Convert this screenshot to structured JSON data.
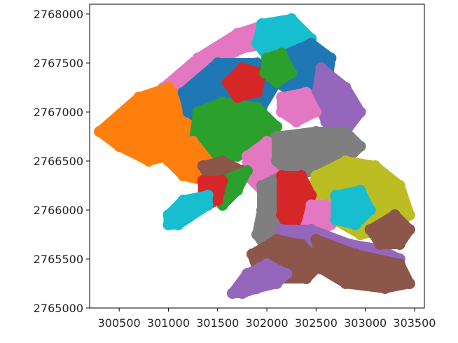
{
  "chart_data": {
    "type": "scatter",
    "title": "",
    "xlabel": "",
    "ylabel": "",
    "xlim": [
      300200,
      303600
    ],
    "ylim": [
      2765000,
      2768100
    ],
    "x_ticks": [
      300500,
      301000,
      301500,
      302000,
      302500,
      303000,
      303500
    ],
    "x_tick_labels": [
      "300500",
      "301000",
      "301500",
      "302000",
      "302500",
      "303000",
      "303500"
    ],
    "y_ticks": [
      2765000,
      2765500,
      2766000,
      2766500,
      2767000,
      2767500,
      2768000
    ],
    "y_tick_labels": [
      "2765000",
      "2765500",
      "2766000",
      "2766500",
      "2767000",
      "2767500",
      "2768000"
    ],
    "grid": false,
    "palette": [
      "#1f77b4",
      "#ff7f0e",
      "#2ca02c",
      "#d62728",
      "#9467bd",
      "#8c564b",
      "#e377c2",
      "#7f7f7f",
      "#bcbd22",
      "#17becf"
    ],
    "regions": [
      {
        "color_index": 6,
        "points": [
          [
            300950,
            2767250
          ],
          [
            301300,
            2767550
          ],
          [
            301700,
            2767800
          ],
          [
            302000,
            2767900
          ],
          [
            302300,
            2767800
          ],
          [
            302050,
            2767700
          ],
          [
            301750,
            2767650
          ],
          [
            301400,
            2767450
          ],
          [
            301100,
            2767200
          ]
        ]
      },
      {
        "color_index": 1,
        "points": [
          [
            300300,
            2766800
          ],
          [
            300700,
            2767150
          ],
          [
            301000,
            2767250
          ],
          [
            301250,
            2767000
          ],
          [
            301150,
            2766700
          ],
          [
            301000,
            2766550
          ],
          [
            300800,
            2766500
          ],
          [
            300500,
            2766650
          ]
        ]
      },
      {
        "color_index": 0,
        "points": [
          [
            301150,
            2767200
          ],
          [
            301500,
            2767500
          ],
          [
            301900,
            2767500
          ],
          [
            302100,
            2767300
          ],
          [
            301950,
            2767050
          ],
          [
            301600,
            2767000
          ],
          [
            301350,
            2766900
          ],
          [
            301200,
            2767000
          ]
        ]
      },
      {
        "color_index": 9,
        "points": [
          [
            301950,
            2767900
          ],
          [
            302250,
            2767950
          ],
          [
            302450,
            2767750
          ],
          [
            302300,
            2767550
          ],
          [
            302050,
            2767500
          ],
          [
            301900,
            2767700
          ]
        ]
      },
      {
        "color_index": 0,
        "points": [
          [
            302100,
            2767550
          ],
          [
            302450,
            2767700
          ],
          [
            302650,
            2767550
          ],
          [
            302600,
            2767200
          ],
          [
            302350,
            2767150
          ],
          [
            302100,
            2767300
          ]
        ]
      },
      {
        "color_index": 4,
        "points": [
          [
            302550,
            2767450
          ],
          [
            302800,
            2767250
          ],
          [
            302950,
            2767000
          ],
          [
            302800,
            2766800
          ],
          [
            302600,
            2766900
          ],
          [
            302500,
            2767150
          ]
        ]
      },
      {
        "color_index": 2,
        "points": [
          [
            301300,
            2767000
          ],
          [
            301550,
            2767100
          ],
          [
            301900,
            2767050
          ],
          [
            302100,
            2766850
          ],
          [
            301950,
            2766650
          ],
          [
            301700,
            2766550
          ],
          [
            301450,
            2766500
          ],
          [
            301250,
            2766650
          ]
        ]
      },
      {
        "color_index": 3,
        "points": [
          [
            301600,
            2767300
          ],
          [
            301750,
            2767450
          ],
          [
            301950,
            2767400
          ],
          [
            301900,
            2767200
          ],
          [
            301700,
            2767150
          ]
        ]
      },
      {
        "color_index": 2,
        "points": [
          [
            302000,
            2767550
          ],
          [
            302150,
            2767600
          ],
          [
            302250,
            2767400
          ],
          [
            302100,
            2767300
          ],
          [
            301980,
            2767400
          ]
        ]
      },
      {
        "color_index": 6,
        "points": [
          [
            302150,
            2767150
          ],
          [
            302400,
            2767200
          ],
          [
            302500,
            2767000
          ],
          [
            302300,
            2766900
          ],
          [
            302150,
            2767000
          ]
        ]
      },
      {
        "color_index": 1,
        "points": [
          [
            301000,
            2766700
          ],
          [
            301250,
            2766700
          ],
          [
            301450,
            2766450
          ],
          [
            301350,
            2766300
          ],
          [
            301150,
            2766350
          ],
          [
            301000,
            2766500
          ]
        ]
      },
      {
        "color_index": 6,
        "points": [
          [
            301800,
            2766550
          ],
          [
            302000,
            2766700
          ],
          [
            302150,
            2766550
          ],
          [
            302150,
            2766350
          ],
          [
            301950,
            2766200
          ],
          [
            301800,
            2766350
          ]
        ]
      },
      {
        "color_index": 5,
        "points": [
          [
            301350,
            2766450
          ],
          [
            301550,
            2766500
          ],
          [
            301750,
            2766400
          ],
          [
            301700,
            2766300
          ],
          [
            301450,
            2766250
          ]
        ]
      },
      {
        "color_index": 2,
        "points": [
          [
            301550,
            2766300
          ],
          [
            301800,
            2766400
          ],
          [
            301700,
            2766200
          ],
          [
            301550,
            2766050
          ],
          [
            301480,
            2766150
          ]
        ]
      },
      {
        "color_index": 3,
        "points": [
          [
            301350,
            2766300
          ],
          [
            301550,
            2766300
          ],
          [
            301500,
            2766100
          ],
          [
            301400,
            2766050
          ],
          [
            301350,
            2766150
          ]
        ]
      },
      {
        "color_index": 9,
        "points": [
          [
            301000,
            2765850
          ],
          [
            301100,
            2765850
          ],
          [
            301400,
            2766050
          ],
          [
            301400,
            2766150
          ],
          [
            301150,
            2766100
          ],
          [
            301000,
            2765950
          ]
        ]
      },
      {
        "color_index": 7,
        "points": [
          [
            302100,
            2766750
          ],
          [
            302500,
            2766800
          ],
          [
            302800,
            2766800
          ],
          [
            302950,
            2766650
          ],
          [
            302750,
            2766450
          ],
          [
            302500,
            2766400
          ],
          [
            302250,
            2766350
          ],
          [
            302100,
            2766500
          ]
        ]
      },
      {
        "color_index": 8,
        "points": [
          [
            302500,
            2766350
          ],
          [
            302800,
            2766500
          ],
          [
            303100,
            2766450
          ],
          [
            303350,
            2766250
          ],
          [
            303450,
            2765950
          ],
          [
            303250,
            2765800
          ],
          [
            302950,
            2765750
          ],
          [
            302600,
            2765950
          ],
          [
            302450,
            2766150
          ]
        ]
      },
      {
        "color_index": 7,
        "points": [
          [
            301950,
            2766250
          ],
          [
            302150,
            2766350
          ],
          [
            302200,
            2766100
          ],
          [
            302150,
            2765800
          ],
          [
            302000,
            2765600
          ],
          [
            301900,
            2765750
          ],
          [
            301950,
            2766000
          ]
        ]
      },
      {
        "color_index": 3,
        "points": [
          [
            302150,
            2766350
          ],
          [
            302350,
            2766350
          ],
          [
            302450,
            2766150
          ],
          [
            302400,
            2765850
          ],
          [
            302250,
            2765750
          ],
          [
            302150,
            2765950
          ]
        ]
      },
      {
        "color_index": 6,
        "points": [
          [
            302450,
            2766050
          ],
          [
            302600,
            2766050
          ],
          [
            302650,
            2765850
          ],
          [
            302500,
            2765750
          ],
          [
            302400,
            2765850
          ]
        ]
      },
      {
        "color_index": 9,
        "points": [
          [
            302700,
            2766150
          ],
          [
            302950,
            2766200
          ],
          [
            303050,
            2766000
          ],
          [
            302900,
            2765850
          ],
          [
            302700,
            2765900
          ]
        ]
      },
      {
        "color_index": 4,
        "points": [
          [
            302150,
            2765800
          ],
          [
            302450,
            2765800
          ],
          [
            302850,
            2765650
          ],
          [
            303150,
            2765600
          ],
          [
            303350,
            2765500
          ],
          [
            303100,
            2765350
          ],
          [
            302700,
            2765400
          ],
          [
            302350,
            2765550
          ],
          [
            302100,
            2765650
          ]
        ]
      },
      {
        "color_index": 5,
        "points": [
          [
            301850,
            2765550
          ],
          [
            302100,
            2765700
          ],
          [
            302350,
            2765650
          ],
          [
            302550,
            2765450
          ],
          [
            302400,
            2765300
          ],
          [
            302100,
            2765300
          ],
          [
            301900,
            2765400
          ]
        ]
      },
      {
        "color_index": 5,
        "points": [
          [
            302500,
            2765700
          ],
          [
            302900,
            2765550
          ],
          [
            303350,
            2765450
          ],
          [
            303450,
            2765250
          ],
          [
            303200,
            2765200
          ],
          [
            302800,
            2765250
          ],
          [
            302550,
            2765400
          ]
        ]
      },
      {
        "color_index": 5,
        "points": [
          [
            303050,
            2765800
          ],
          [
            303300,
            2765950
          ],
          [
            303450,
            2765800
          ],
          [
            303350,
            2765650
          ],
          [
            303150,
            2765650
          ]
        ]
      },
      {
        "color_index": 4,
        "points": [
          [
            301650,
            2765150
          ],
          [
            301800,
            2765350
          ],
          [
            302000,
            2765450
          ],
          [
            302200,
            2765350
          ],
          [
            302100,
            2765250
          ],
          [
            301900,
            2765200
          ],
          [
            301750,
            2765150
          ]
        ]
      }
    ]
  }
}
